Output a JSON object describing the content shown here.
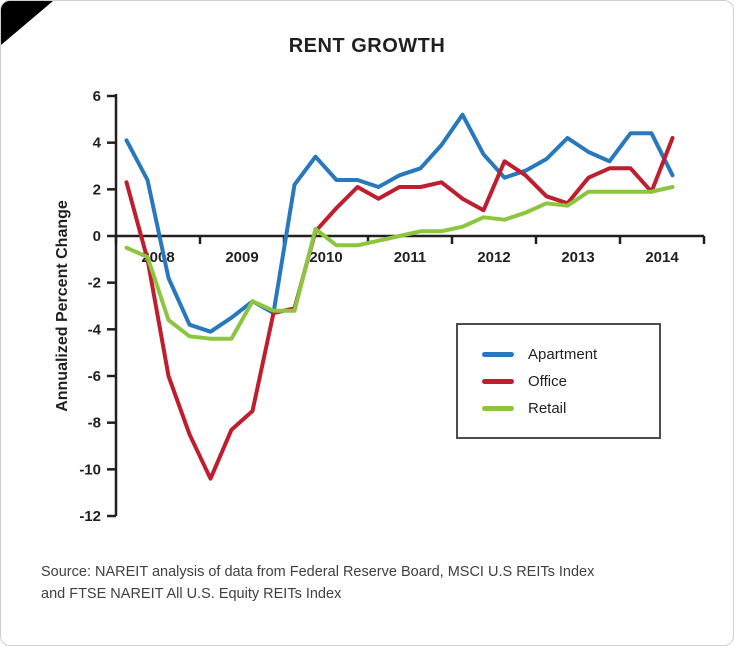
{
  "title": "RENT GROWTH",
  "y_axis_label": "Annualized Percent Change",
  "source": {
    "line1": "Source: NAREIT analysis of data from Federal Reserve Board, MSCI U.S REITs Index",
    "line2": "and FTSE NAREIT All U.S. Equity REITs Index"
  },
  "colors": {
    "apartment": "#2878BE",
    "office": "#BE1E2D",
    "retail": "#8CC63F",
    "axis": "#231f20"
  },
  "chart_data": {
    "type": "line",
    "title": "RENT GROWTH",
    "xlabel": "",
    "ylabel": "Annualized Percent Change",
    "ylim": [
      -12,
      6
    ],
    "yticks": [
      6,
      4,
      2,
      0,
      -2,
      -4,
      -6,
      -8,
      -10,
      -12
    ],
    "x_years": [
      "2008",
      "2009",
      "2010",
      "2011",
      "2012",
      "2013",
      "2014"
    ],
    "quarters_per_year": 4,
    "grid": "off",
    "legend_position": "inside-right",
    "series": [
      {
        "name": "Apartment",
        "color": "#2878BE",
        "values": [
          4.1,
          2.4,
          -1.8,
          -3.8,
          -4.1,
          -3.5,
          -2.8,
          -3.3,
          2.2,
          3.4,
          2.4,
          2.4,
          2.1,
          2.6,
          2.9,
          3.9,
          5.2,
          3.5,
          2.5,
          2.8,
          3.3,
          4.2,
          3.6,
          3.2,
          4.4,
          4.4,
          2.6
        ]
      },
      {
        "name": "Office",
        "color": "#BE1E2D",
        "values": [
          2.3,
          -1.0,
          -6.0,
          -8.5,
          -10.4,
          -8.3,
          -7.5,
          -3.3,
          -3.1,
          0.2,
          1.2,
          2.1,
          1.6,
          2.1,
          2.1,
          2.3,
          1.6,
          1.1,
          3.2,
          2.6,
          1.7,
          1.4,
          2.5,
          2.9,
          2.9,
          1.9,
          4.2
        ]
      },
      {
        "name": "Retail",
        "color": "#8CC63F",
        "values": [
          -0.5,
          -0.9,
          -3.6,
          -4.3,
          -4.4,
          -4.4,
          -2.8,
          -3.2,
          -3.2,
          0.3,
          -0.4,
          -0.4,
          -0.2,
          0.0,
          0.2,
          0.2,
          0.4,
          0.8,
          0.7,
          1.0,
          1.4,
          1.3,
          1.9,
          1.9,
          1.9,
          1.9,
          2.1
        ]
      }
    ]
  }
}
